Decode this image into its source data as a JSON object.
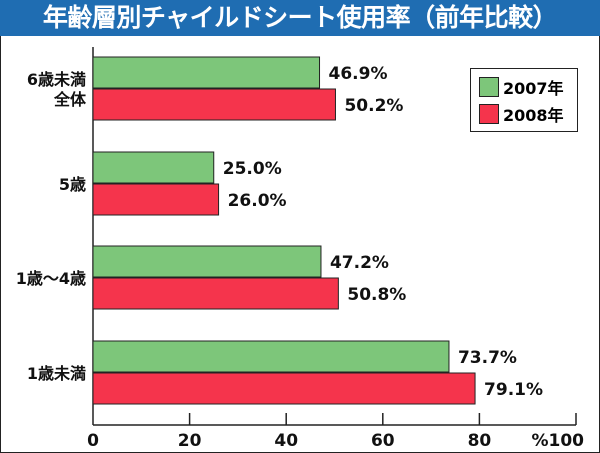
{
  "title": "年齢層別チャイルドシート使用率（前年比較）",
  "chart_data": {
    "type": "bar",
    "orientation": "horizontal",
    "title": "年齢層別チャイルドシート使用率（前年比較）",
    "categories": [
      [
        "6歳未満",
        "全体"
      ],
      [
        "5歳"
      ],
      [
        "1歳～4歳"
      ],
      [
        "1歳未満"
      ]
    ],
    "series": [
      {
        "name": "2007年",
        "color": "#7dc67a",
        "values": [
          46.9,
          25.0,
          47.2,
          73.7
        ],
        "labels": [
          "46.9%",
          "25.0%",
          "47.2%",
          "73.7%"
        ]
      },
      {
        "name": "2008年",
        "color": "#f5344c",
        "values": [
          50.2,
          26.0,
          50.8,
          79.1
        ],
        "labels": [
          "50.2%",
          "26.0%",
          "50.8%",
          "79.1%"
        ]
      }
    ],
    "xlim": [
      0,
      100
    ],
    "xticks": [
      "0",
      "20",
      "40",
      "60",
      "80",
      "%100"
    ],
    "legend": "top-right",
    "grid": false
  }
}
